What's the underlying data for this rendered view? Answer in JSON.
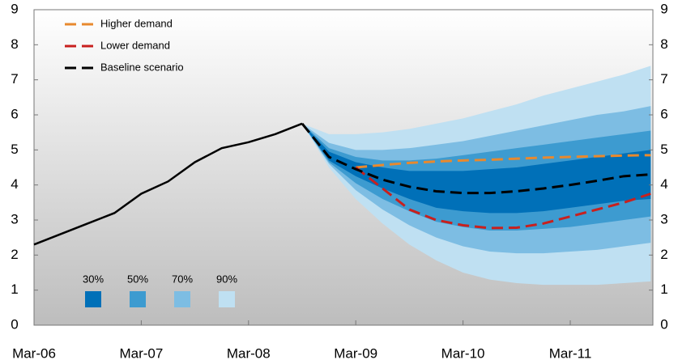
{
  "chart_data": {
    "type": "fan",
    "categories": [
      "Mar-06",
      null,
      null,
      null,
      "Mar-07",
      null,
      null,
      null,
      "Mar-08",
      null,
      null,
      null,
      "Mar-09",
      null,
      null,
      null,
      "Mar-10",
      null,
      null,
      null,
      "Mar-11",
      null,
      null,
      null
    ],
    "ylim": [
      0,
      9
    ],
    "yticks": [
      0,
      1,
      2,
      3,
      4,
      5,
      6,
      7,
      8,
      9
    ],
    "y2lim": [
      0,
      9
    ],
    "y2ticks": [
      0,
      1,
      2,
      3,
      4,
      5,
      6,
      7,
      8,
      9
    ],
    "series": [
      {
        "color": "#000000",
        "dashed": false,
        "values": [
          2.3,
          2.6,
          2.9,
          3.2,
          3.75,
          4.1,
          4.65,
          5.05,
          5.22,
          5.45,
          5.75,
          null,
          null,
          null,
          null,
          null,
          null,
          null,
          null,
          null,
          null,
          null,
          null,
          null
        ]
      },
      {
        "name": "Higher demand",
        "color": "#e8892e",
        "dashed": true,
        "values": [
          null,
          null,
          null,
          null,
          null,
          null,
          null,
          null,
          null,
          null,
          null,
          null,
          4.5,
          4.57,
          4.63,
          4.67,
          4.7,
          4.72,
          4.75,
          4.78,
          4.8,
          4.82,
          4.84,
          4.85
        ]
      },
      {
        "name": "Lower demand",
        "color": "#c8201e",
        "dashed": true,
        "values": [
          null,
          null,
          null,
          null,
          null,
          null,
          null,
          null,
          null,
          null,
          null,
          null,
          4.5,
          3.9,
          3.3,
          3.0,
          2.85,
          2.77,
          2.78,
          2.9,
          3.1,
          3.3,
          3.5,
          3.75
        ]
      },
      {
        "name": "Baseline scenario",
        "color": "#000000",
        "dashed": true,
        "values": [
          null,
          null,
          null,
          null,
          null,
          null,
          null,
          null,
          null,
          null,
          5.75,
          4.8,
          4.45,
          4.15,
          3.95,
          3.82,
          3.77,
          3.77,
          3.82,
          3.9,
          4.0,
          4.12,
          4.25,
          4.3
        ]
      }
    ],
    "bands": [
      {
        "name": "30%",
        "color": "#0070b8",
        "upper": [
          null,
          null,
          null,
          null,
          null,
          null,
          null,
          null,
          null,
          null,
          5.75,
          4.95,
          4.65,
          4.5,
          4.4,
          4.4,
          4.4,
          4.45,
          4.5,
          4.6,
          4.7,
          4.8,
          4.9,
          5.0
        ],
        "lower": [
          null,
          null,
          null,
          null,
          null,
          null,
          null,
          null,
          null,
          null,
          5.75,
          4.7,
          4.25,
          3.9,
          3.6,
          3.35,
          3.25,
          3.2,
          3.2,
          3.25,
          3.35,
          3.45,
          3.55,
          3.6
        ]
      },
      {
        "name": "50%",
        "color": "#3d9bd0",
        "upper": [
          null,
          null,
          null,
          null,
          null,
          null,
          null,
          null,
          null,
          null,
          5.75,
          5.05,
          4.8,
          4.7,
          4.7,
          4.75,
          4.85,
          4.95,
          5.05,
          5.15,
          5.25,
          5.35,
          5.45,
          5.55
        ],
        "lower": [
          null,
          null,
          null,
          null,
          null,
          null,
          null,
          null,
          null,
          null,
          5.75,
          4.65,
          4.05,
          3.6,
          3.25,
          2.95,
          2.8,
          2.7,
          2.7,
          2.75,
          2.8,
          2.9,
          3.0,
          3.1
        ]
      },
      {
        "name": "70%",
        "color": "#7dbde3",
        "upper": [
          null,
          null,
          null,
          null,
          null,
          null,
          null,
          null,
          null,
          null,
          5.75,
          5.2,
          5.0,
          5.0,
          5.05,
          5.15,
          5.25,
          5.4,
          5.55,
          5.7,
          5.85,
          6.0,
          6.1,
          6.25
        ],
        "lower": [
          null,
          null,
          null,
          null,
          null,
          null,
          null,
          null,
          null,
          null,
          5.75,
          4.6,
          3.85,
          3.3,
          2.85,
          2.5,
          2.25,
          2.1,
          2.05,
          2.05,
          2.1,
          2.15,
          2.25,
          2.35
        ]
      },
      {
        "name": "90%",
        "color": "#bfe0f2",
        "upper": [
          null,
          null,
          null,
          null,
          null,
          null,
          null,
          null,
          null,
          null,
          5.75,
          5.45,
          5.45,
          5.5,
          5.6,
          5.75,
          5.9,
          6.1,
          6.3,
          6.55,
          6.75,
          6.95,
          7.15,
          7.4
        ],
        "lower": [
          null,
          null,
          null,
          null,
          null,
          null,
          null,
          null,
          null,
          null,
          5.75,
          4.5,
          3.6,
          2.9,
          2.3,
          1.85,
          1.5,
          1.3,
          1.2,
          1.15,
          1.15,
          1.15,
          1.2,
          1.25
        ]
      }
    ]
  }
}
